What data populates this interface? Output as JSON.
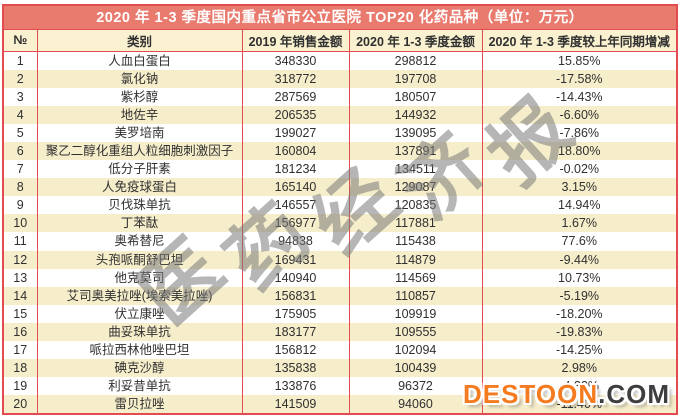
{
  "title": "2020 年 1-3 季度国内重点省市公立医院 TOP20 化药品种（单位：万元）",
  "table": {
    "headers": [
      "№",
      "类别",
      "2019 年销售金额",
      "2020 年 1-3 季度金额",
      "2020 年 1-3 季度较上年同期增减"
    ],
    "rows": [
      {
        "no": "1",
        "name": "人血白蛋白",
        "y2019": "348330",
        "q2020": "298812",
        "yoy": "15.85%"
      },
      {
        "no": "2",
        "name": "氯化钠",
        "y2019": "318772",
        "q2020": "197708",
        "yoy": "-17.58%"
      },
      {
        "no": "3",
        "name": "紫杉醇",
        "y2019": "287569",
        "q2020": "180507",
        "yoy": "-14.43%"
      },
      {
        "no": "4",
        "name": "地佐辛",
        "y2019": "206535",
        "q2020": "144932",
        "yoy": "-6.60%"
      },
      {
        "no": "5",
        "name": "美罗培南",
        "y2019": "199027",
        "q2020": "139095",
        "yoy": "-7.86%"
      },
      {
        "no": "6",
        "name": "聚乙二醇化重组人粒细胞刺激因子",
        "y2019": "160804",
        "q2020": "137891",
        "yoy": "18.80%"
      },
      {
        "no": "7",
        "name": "低分子肝素",
        "y2019": "181234",
        "q2020": "134511",
        "yoy": "-0.02%"
      },
      {
        "no": "8",
        "name": "人免疫球蛋白",
        "y2019": "165140",
        "q2020": "129087",
        "yoy": "3.15%"
      },
      {
        "no": "9",
        "name": "贝伐珠单抗",
        "y2019": "146557",
        "q2020": "120835",
        "yoy": "14.94%"
      },
      {
        "no": "10",
        "name": "丁苯酞",
        "y2019": "156977",
        "q2020": "117881",
        "yoy": "1.67%"
      },
      {
        "no": "11",
        "name": "奥希替尼",
        "y2019": "94838",
        "q2020": "115438",
        "yoy": "77.6%"
      },
      {
        "no": "12",
        "name": "头孢哌酮舒巴坦",
        "y2019": "169431",
        "q2020": "114879",
        "yoy": "-9.44%"
      },
      {
        "no": "13",
        "name": "他克莫司",
        "y2019": "140940",
        "q2020": "114569",
        "yoy": "10.73%"
      },
      {
        "no": "14",
        "name": "艾司奥美拉唑(埃索美拉唑)",
        "y2019": "156831",
        "q2020": "110857",
        "yoy": "-5.19%"
      },
      {
        "no": "15",
        "name": "伏立康唑",
        "y2019": "175905",
        "q2020": "109919",
        "yoy": "-18.20%"
      },
      {
        "no": "16",
        "name": "曲妥珠单抗",
        "y2019": "183177",
        "q2020": "109555",
        "yoy": "-19.83%"
      },
      {
        "no": "17",
        "name": "哌拉西林他唑巴坦",
        "y2019": "156812",
        "q2020": "102094",
        "yoy": "-14.25%"
      },
      {
        "no": "18",
        "name": "碘克沙醇",
        "y2019": "135838",
        "q2020": "100439",
        "yoy": "2.98%"
      },
      {
        "no": "19",
        "name": "利妥昔单抗",
        "y2019": "133876",
        "q2020": "96372",
        "yoy": "-4.33%"
      },
      {
        "no": "20",
        "name": "雷贝拉唑",
        "y2019": "141509",
        "q2020": "94060",
        "yoy": "-11.40%"
      }
    ]
  },
  "chart_data": {
    "type": "table",
    "title": "2020 年 1-3 季度国内重点省市公立医院 TOP20 化药品种（单位：万元）",
    "columns": [
      "№",
      "类别",
      "2019 年销售金额",
      "2020 年 1-3 季度金额",
      "2020 年 1-3 季度较上年同期增减"
    ],
    "rows": [
      [
        1,
        "人血白蛋白",
        348330,
        298812,
        "15.85%"
      ],
      [
        2,
        "氯化钠",
        318772,
        197708,
        "-17.58%"
      ],
      [
        3,
        "紫杉醇",
        287569,
        180507,
        "-14.43%"
      ],
      [
        4,
        "地佐辛",
        206535,
        144932,
        "-6.60%"
      ],
      [
        5,
        "美罗培南",
        199027,
        139095,
        "-7.86%"
      ],
      [
        6,
        "聚乙二醇化重组人粒细胞刺激因子",
        160804,
        137891,
        "18.80%"
      ],
      [
        7,
        "低分子肝素",
        181234,
        134511,
        "-0.02%"
      ],
      [
        8,
        "人免疫球蛋白",
        165140,
        129087,
        "3.15%"
      ],
      [
        9,
        "贝伐珠单抗",
        146557,
        120835,
        "14.94%"
      ],
      [
        10,
        "丁苯酞",
        156977,
        117881,
        "1.67%"
      ],
      [
        11,
        "奥希替尼",
        94838,
        115438,
        "77.6%"
      ],
      [
        12,
        "头孢哌酮舒巴坦",
        169431,
        114879,
        "-9.44%"
      ],
      [
        13,
        "他克莫司",
        140940,
        114569,
        "10.73%"
      ],
      [
        14,
        "艾司奥美拉唑(埃索美拉唑)",
        156831,
        110857,
        "-5.19%"
      ],
      [
        15,
        "伏立康唑",
        175905,
        109919,
        "-18.20%"
      ],
      [
        16,
        "曲妥珠单抗",
        183177,
        109555,
        "-19.83%"
      ],
      [
        17,
        "哌拉西林他唑巴坦",
        156812,
        102094,
        "-14.25%"
      ],
      [
        18,
        "碘克沙醇",
        135838,
        100439,
        "2.98%"
      ],
      [
        19,
        "利妥昔单抗",
        133876,
        96372,
        "-4.33%"
      ],
      [
        20,
        "雷贝拉唑",
        141509,
        94060,
        "-11.40%"
      ]
    ]
  },
  "watermark": {
    "text": "医药经济报"
  },
  "site_watermark": {
    "name": "DESTOON",
    "tld": ".COM"
  },
  "colors": {
    "title_bg": "#E87A6E",
    "border": "#E24B50",
    "header_bg": "#F9F1CF",
    "row_even_bg": "#F6EECB",
    "row_odd_bg": "#FFFFFF",
    "watermark_gray": "#7A7A7A",
    "destoon_orange": "#F47B20",
    "destoon_dark": "#3E3E40"
  }
}
